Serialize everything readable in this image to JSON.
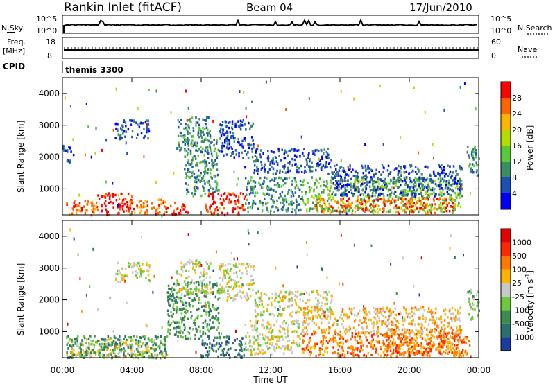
{
  "header": {
    "radar": "Rankin Inlet (fitACF)",
    "beam": "Beam 04",
    "date": "17/Jun/2010"
  },
  "top_panels": {
    "nsky_label": "N.Sky",
    "nsearch_label": "N.Search",
    "noise_ticks": [
      "10^5",
      "10^0"
    ],
    "freq_label": "Freq.",
    "freq_unit": "[MHz]",
    "freq_ticks": [
      "18",
      "8"
    ],
    "nave_ticks": [
      "60",
      "0"
    ],
    "nave_label": "Nave",
    "cpid_label": "CPID",
    "cpid_value": "themis 3300"
  },
  "x_axis": {
    "label": "Time UT",
    "ticks": [
      "00:00",
      "04:00",
      "08:00",
      "12:00",
      "16:00",
      "20:00",
      "00:00"
    ]
  },
  "y_axis": {
    "label": "Slant Range [km]",
    "ticks": [
      "1000",
      "2000",
      "3000",
      "4000"
    ]
  },
  "colorbars": {
    "power": {
      "label": "Power [dB]",
      "ticks": [
        "4",
        "8",
        "12",
        "16",
        "20",
        "24",
        "28"
      ],
      "colors": [
        "#0000ff",
        "#1e50b4",
        "#3c8c64",
        "#5ac83c",
        "#b4dc00",
        "#ffb400",
        "#ff6400",
        "#ff0000"
      ]
    },
    "velocity": {
      "label": "Velocity [m s",
      "label_sup": "-1",
      "label_end": "]",
      "ticks": [
        "1000",
        "500",
        "100",
        "25",
        "-25",
        "-100",
        "-500",
        "-1000"
      ],
      "colors": [
        "#1a3c9e",
        "#2d6e6e",
        "#3c8c50",
        "#6ec83c",
        "#c8c8c8",
        "#ffb400",
        "#ff7800",
        "#ff2800",
        "#e60000"
      ]
    }
  },
  "chart_data": [
    {
      "type": "heatmap",
      "title": "Power",
      "xlabel": "Time UT",
      "ylabel": "Slant Range [km]",
      "xlim": [
        0,
        24
      ],
      "ylim": [
        180,
        4500
      ],
      "colorbar_label": "Power [dB]",
      "regions": [
        {
          "t": [
            0.2,
            2.0
          ],
          "r": [
            200,
            700
          ],
          "level": 6
        },
        {
          "t": [
            2.0,
            3.8
          ],
          "r": [
            200,
            900
          ],
          "level": 7
        },
        {
          "t": [
            3.8,
            6.0
          ],
          "r": [
            200,
            700
          ],
          "level": 6
        },
        {
          "t": [
            6.0,
            7.2
          ],
          "r": [
            200,
            550
          ],
          "level": 7
        },
        {
          "t": [
            7.0,
            9.0
          ],
          "r": [
            800,
            2600
          ],
          "level": 2
        },
        {
          "t": [
            8.2,
            10.5
          ],
          "r": [
            200,
            900
          ],
          "level": 7
        },
        {
          "t": [
            10.5,
            13.8
          ],
          "r": [
            300,
            1400
          ],
          "level": 2
        },
        {
          "t": [
            13.8,
            23.0
          ],
          "r": [
            300,
            1400
          ],
          "level": 3
        },
        {
          "t": [
            14.5,
            22.5
          ],
          "r": [
            250,
            750
          ],
          "level": 6
        },
        {
          "t": [
            11.0,
            15.5
          ],
          "r": [
            1500,
            2300
          ],
          "level": 1
        },
        {
          "t": [
            15.5,
            23.0
          ],
          "r": [
            800,
            1800
          ],
          "level": 1
        },
        {
          "t": [
            3.0,
            5.0
          ],
          "r": [
            2600,
            3200
          ],
          "level": 1
        },
        {
          "t": [
            6.5,
            8.5
          ],
          "r": [
            2200,
            3300
          ],
          "level": 2
        },
        {
          "t": [
            9.0,
            11.0
          ],
          "r": [
            2000,
            3200
          ],
          "level": 1
        },
        {
          "t": [
            0.0,
            0.6
          ],
          "r": [
            1800,
            2400
          ],
          "level": 1
        },
        {
          "t": [
            23.3,
            24.0
          ],
          "r": [
            1400,
            2400
          ],
          "level": 2
        }
      ]
    },
    {
      "type": "heatmap",
      "title": "Velocity",
      "xlabel": "Time UT",
      "ylabel": "Slant Range [km]",
      "xlim": [
        0,
        24
      ],
      "ylim": [
        180,
        4500
      ],
      "colorbar_label": "Velocity [m s-1]",
      "regions": [
        {
          "t": [
            0.2,
            6.0
          ],
          "r": [
            200,
            800
          ],
          "level": 4
        },
        {
          "t": [
            0.2,
            6.0
          ],
          "r": [
            200,
            900
          ],
          "level": 2
        },
        {
          "t": [
            6.0,
            9.0
          ],
          "r": [
            800,
            2600
          ],
          "level": 2
        },
        {
          "t": [
            8.0,
            10.5
          ],
          "r": [
            200,
            900
          ],
          "level": 1
        },
        {
          "t": [
            10.5,
            13.8
          ],
          "r": [
            300,
            1400
          ],
          "level": 4
        },
        {
          "t": [
            13.8,
            23.5
          ],
          "r": [
            250,
            1000
          ],
          "level": 6
        },
        {
          "t": [
            18.5,
            23.0
          ],
          "r": [
            250,
            1100
          ],
          "level": 6
        },
        {
          "t": [
            13.8,
            23.0
          ],
          "r": [
            1000,
            1800
          ],
          "level": 5
        },
        {
          "t": [
            11.0,
            15.5
          ],
          "r": [
            1500,
            2300
          ],
          "level": 4
        },
        {
          "t": [
            3.0,
            5.0
          ],
          "r": [
            2600,
            3200
          ],
          "level": 4
        },
        {
          "t": [
            6.5,
            8.5
          ],
          "r": [
            2200,
            3300
          ],
          "level": 4
        },
        {
          "t": [
            9.0,
            11.0
          ],
          "r": [
            2000,
            3200
          ],
          "level": 4
        },
        {
          "t": [
            23.3,
            24.0
          ],
          "r": [
            1400,
            2400
          ],
          "level": 3
        }
      ]
    }
  ]
}
